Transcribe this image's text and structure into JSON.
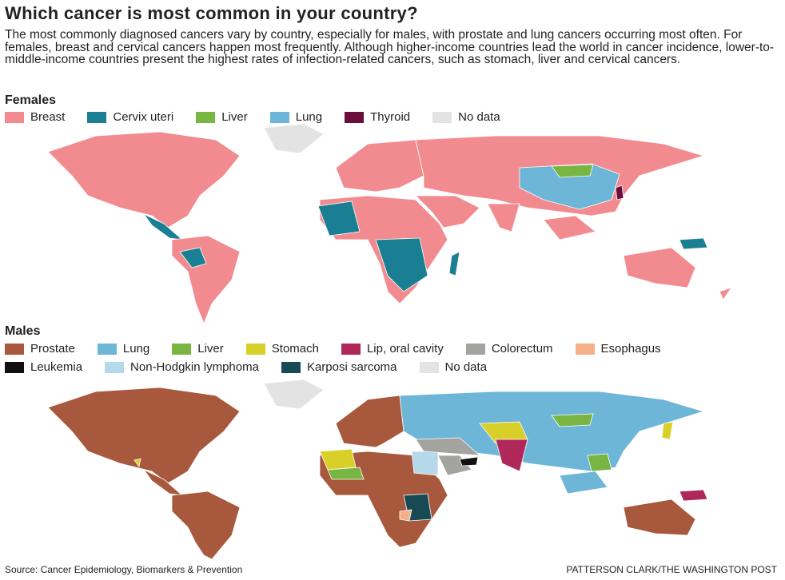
{
  "title": "Which cancer is most common in your country?",
  "description": "The most commonly diagnosed cancers vary by country, especially for males, with prostate and lung cancers occurring most often. For females, breast and cervical cancers happen most frequently. Although higher-income countries lead the world in cancer incidence, lower-to-middle-income countries present the highest rates of infection-related cancers, such as stomach, liver and cervical cancers.",
  "females": {
    "heading": "Females",
    "legend": [
      {
        "label": "Breast",
        "color": "#f28b8f"
      },
      {
        "label": "Cervix uteri",
        "color": "#1a7f92"
      },
      {
        "label": "Liver",
        "color": "#79b543"
      },
      {
        "label": "Lung",
        "color": "#6db6d8"
      },
      {
        "label": "Thyroid",
        "color": "#6b0f3a"
      },
      {
        "label": "No data",
        "color": "#e3e3e3"
      }
    ]
  },
  "males": {
    "heading": "Males",
    "legend": [
      {
        "label": "Prostate",
        "color": "#a8583c"
      },
      {
        "label": "Lung",
        "color": "#6db6d8"
      },
      {
        "label": "Liver",
        "color": "#79b543"
      },
      {
        "label": "Stomach",
        "color": "#d9cf29"
      },
      {
        "label": "Lip, oral cavity",
        "color": "#b0275a"
      },
      {
        "label": "Colorectum",
        "color": "#a3a3a0"
      },
      {
        "label": "Esophagus",
        "color": "#f4b088"
      },
      {
        "label": "Leukemia",
        "color": "#111111"
      },
      {
        "label": "Non-Hodgkin lymphoma",
        "color": "#b5d8ea"
      },
      {
        "label": "Karposi sarcoma",
        "color": "#184a56"
      },
      {
        "label": "No data",
        "color": "#e3e3e3"
      }
    ]
  },
  "source": "Source: Cancer Epidemiology, Biomarkers & Prevention",
  "credit": "PATTERSON CLARK/THE WASHINGTON POST"
}
